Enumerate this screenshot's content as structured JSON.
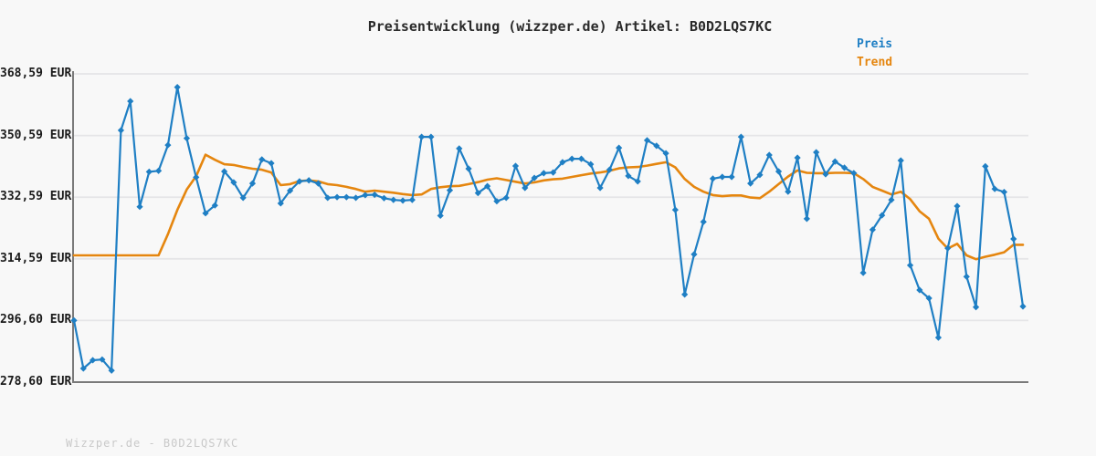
{
  "title": "Preisentwicklung (wizzper.de) Artikel: B0D2LQS7KC",
  "footer": "Wizzper.de - B0D2LQS7KC",
  "colors": {
    "background": "#f8f8f8",
    "grid": "#e5e5e7",
    "axis": "#7a7a7a",
    "price": "#1f7fc4",
    "trend": "#e5860f",
    "title_text": "#2a2a2a",
    "tick_text": "#1a1a1a",
    "watermark_text": "#c9c9c9"
  },
  "chart_data": {
    "type": "line",
    "title": "Preisentwicklung (wizzper.de) Artikel: B0D2LQS7KC",
    "xlabel": "",
    "ylabel": "",
    "ylim": [
      278.6,
      368.59
    ],
    "grid": "horizontal",
    "legend_position": "top-right",
    "x_axis": "time (unlabeled, ~102 equally spaced observations)",
    "y_ticks": [
      {
        "value": 368.59,
        "label": "368,59 EUR"
      },
      {
        "value": 350.59,
        "label": "350,59 EUR"
      },
      {
        "value": 332.59,
        "label": "332,59 EUR"
      },
      {
        "value": 314.59,
        "label": "314,59 EUR"
      },
      {
        "value": 296.6,
        "label": "296,60 EUR"
      },
      {
        "value": 278.6,
        "label": "278,60 EUR"
      }
    ],
    "series": [
      {
        "name": "Preis",
        "color": "#1f7fc4",
        "marker": "diamond",
        "values": [
          296.6,
          282.6,
          285.0,
          285.2,
          282.0,
          352.1,
          360.6,
          329.8,
          340.0,
          340.3,
          347.8,
          364.7,
          349.8,
          338.4,
          327.9,
          330.2,
          340.1,
          336.9,
          332.4,
          336.6,
          343.6,
          342.5,
          330.8,
          334.5,
          337.2,
          337.5,
          336.6,
          332.4,
          332.6,
          332.6,
          332.4,
          333.2,
          333.3,
          332.3,
          331.8,
          331.6,
          331.8,
          350.2,
          350.2,
          327.2,
          334.6,
          346.8,
          340.9,
          333.8,
          335.8,
          331.4,
          332.4,
          341.7,
          335.3,
          338.2,
          339.6,
          339.8,
          342.8,
          343.8,
          343.8,
          342.2,
          335.3,
          340.6,
          347.0,
          338.8,
          337.2,
          349.2,
          347.6,
          345.4,
          328.9,
          304.2,
          315.9,
          325.4,
          338.0,
          338.5,
          338.5,
          350.2,
          336.6,
          339.1,
          344.9,
          340.1,
          334.2,
          344.1,
          326.3,
          345.7,
          339.3,
          343.0,
          341.2,
          339.6,
          310.5,
          323.1,
          327.3,
          331.8,
          343.3,
          312.7,
          305.5,
          303.1,
          291.6,
          317.7,
          330.0,
          309.4,
          300.5,
          341.6,
          335.0,
          334.1,
          320.4,
          300.7
        ]
      },
      {
        "name": "Trend",
        "color": "#e5860f",
        "marker": "none",
        "values": [
          315.6,
          315.6,
          315.6,
          315.6,
          315.6,
          315.6,
          315.6,
          315.6,
          315.6,
          315.6,
          321.8,
          328.9,
          334.8,
          338.7,
          345.0,
          343.5,
          342.2,
          342.0,
          341.4,
          340.9,
          340.6,
          339.8,
          336.1,
          336.4,
          337.3,
          337.5,
          337.2,
          336.4,
          336.1,
          335.6,
          335.0,
          334.2,
          334.5,
          334.2,
          333.9,
          333.5,
          333.2,
          333.4,
          335.0,
          335.5,
          335.8,
          335.9,
          336.4,
          337.0,
          337.7,
          338.1,
          337.6,
          337.1,
          336.6,
          336.9,
          337.5,
          337.8,
          338.0,
          338.5,
          339.0,
          339.5,
          339.8,
          340.3,
          341.0,
          341.3,
          341.4,
          341.8,
          342.3,
          342.8,
          341.3,
          337.9,
          335.6,
          334.2,
          333.2,
          332.9,
          333.1,
          333.1,
          332.5,
          332.3,
          334.2,
          336.4,
          338.6,
          340.4,
          339.7,
          339.6,
          339.6,
          339.7,
          339.7,
          339.6,
          337.9,
          335.6,
          334.5,
          333.4,
          334.2,
          332.0,
          328.5,
          326.3,
          320.5,
          317.6,
          319.0,
          315.6,
          314.5,
          315.2,
          315.8,
          316.5,
          318.7,
          318.7
        ]
      }
    ]
  }
}
